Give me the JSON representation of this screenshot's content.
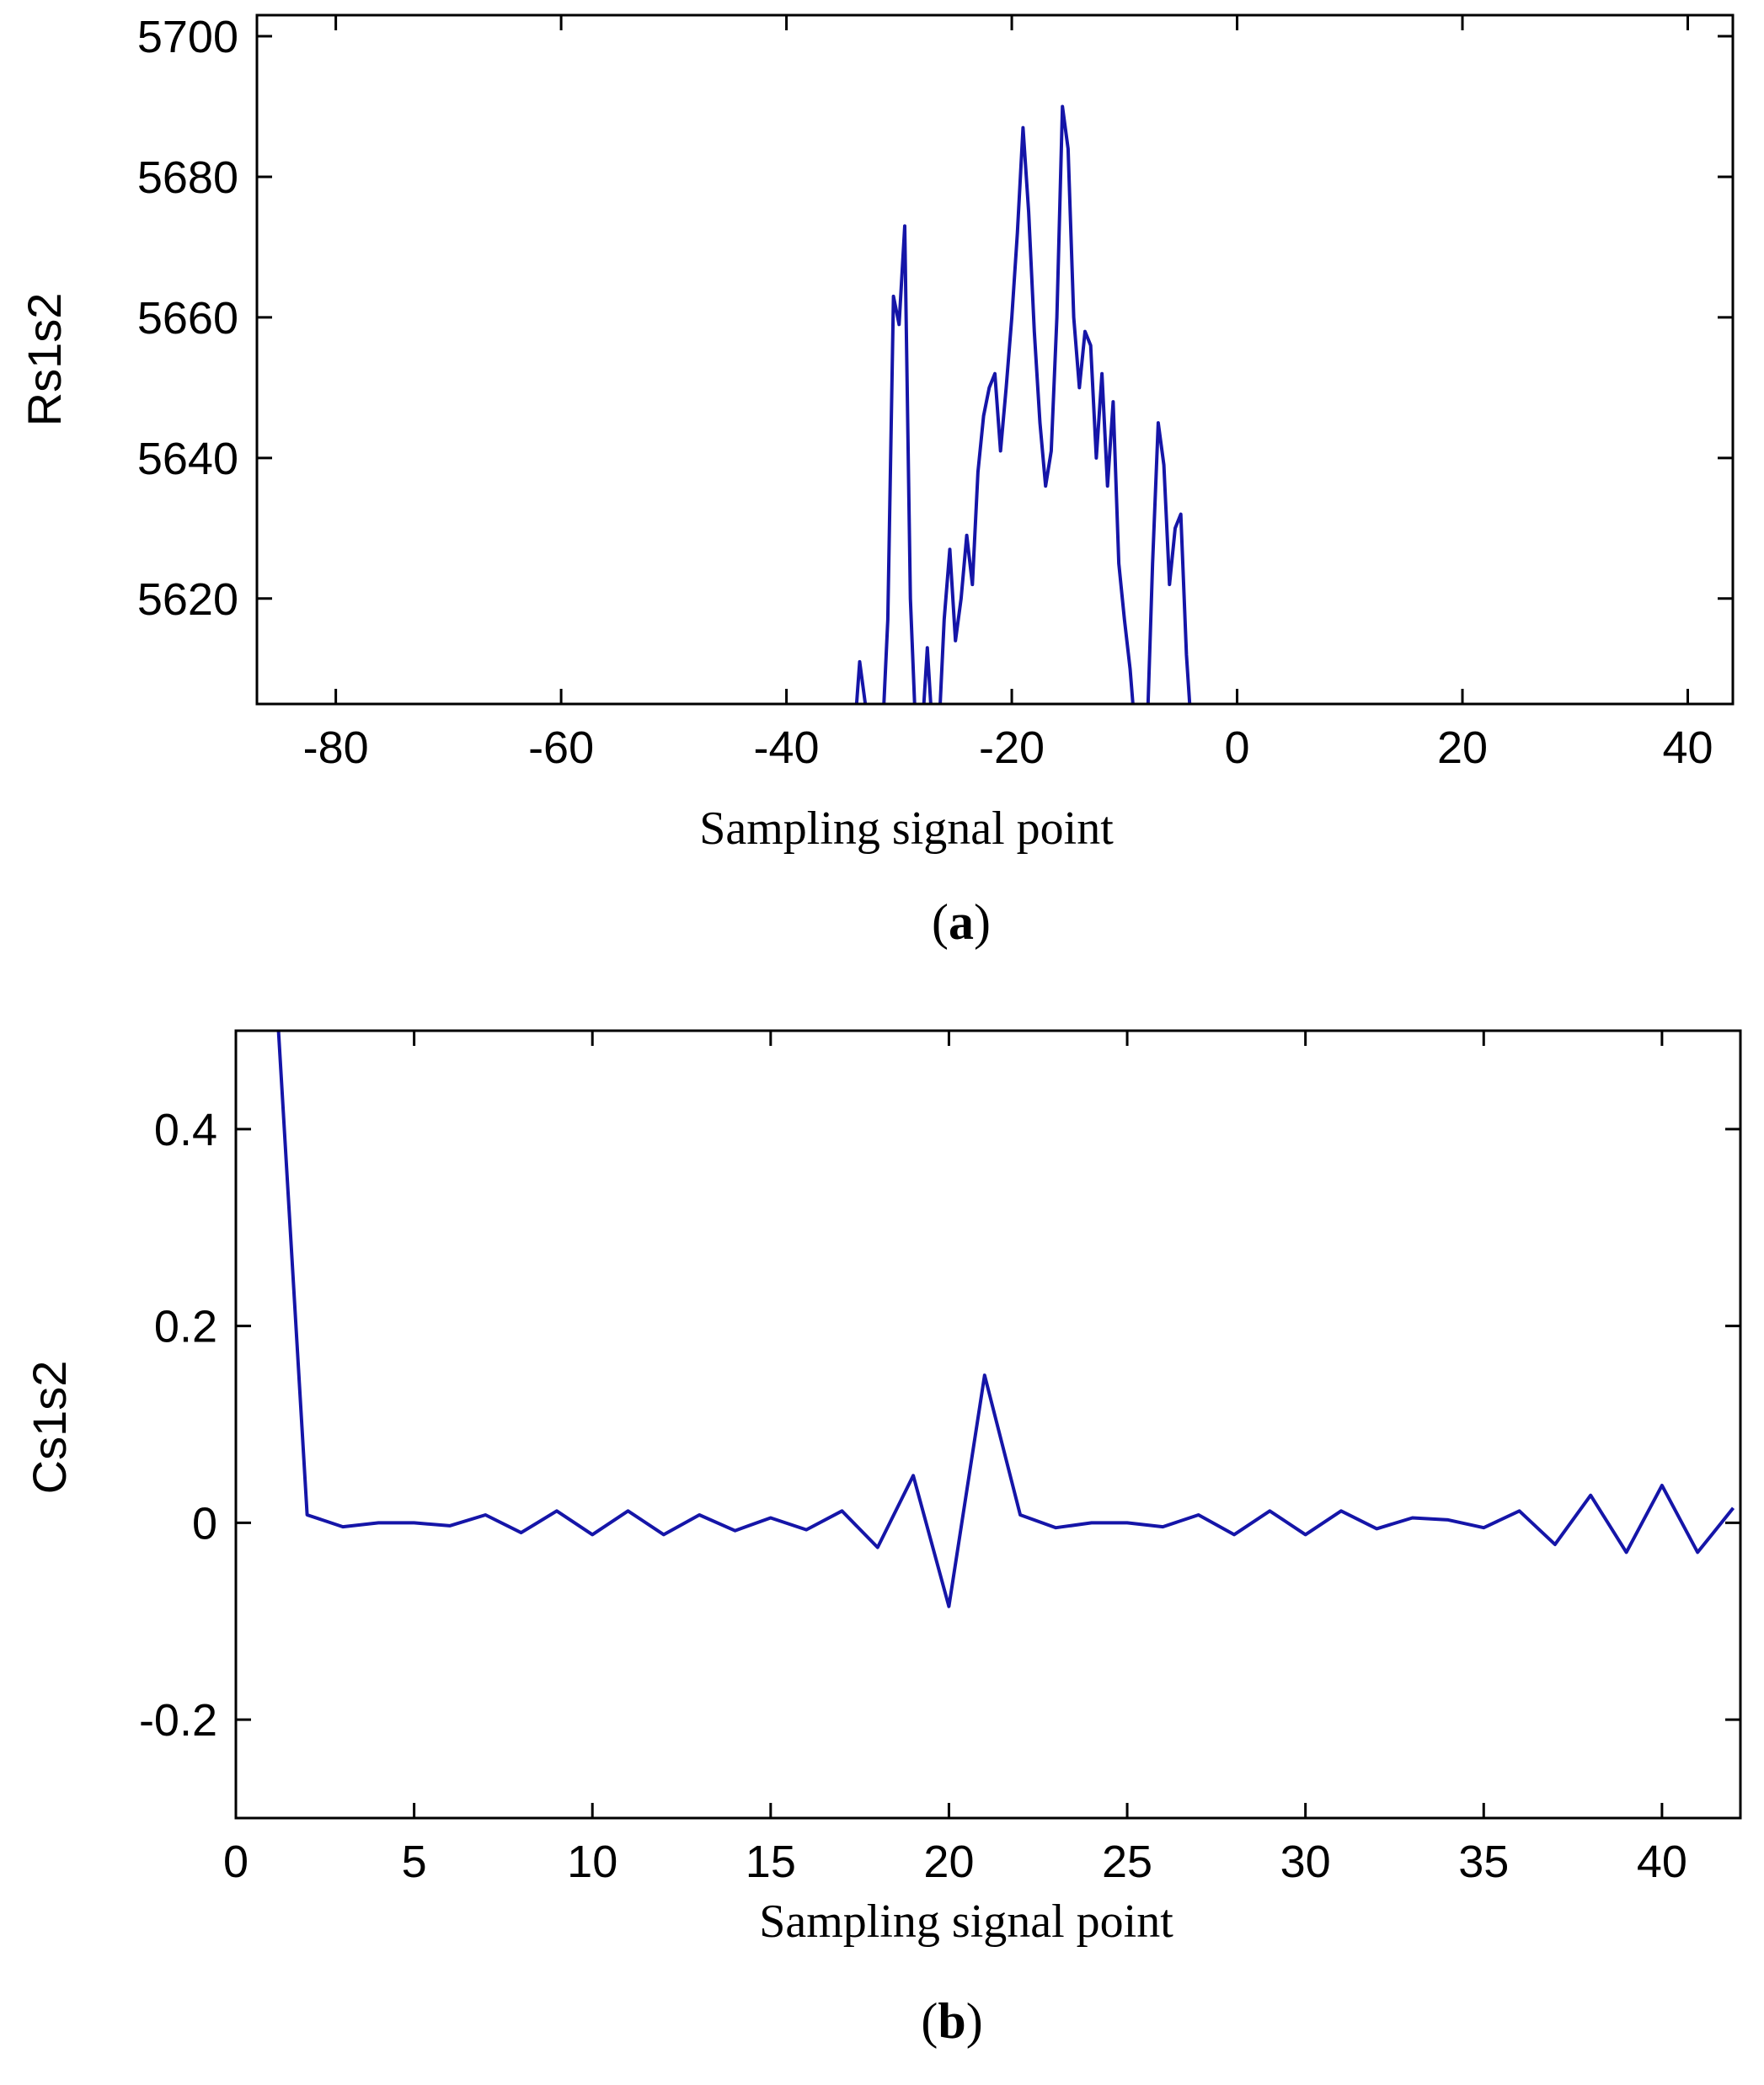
{
  "colors": {
    "series": "#1515a8",
    "axis": "#000000",
    "background": "#ffffff"
  },
  "chart_data": [
    {
      "type": "line",
      "panel_label": "a",
      "xlabel": "Sampling signal point",
      "ylabel": "Rs1s2",
      "xlim": [
        -87,
        44
      ],
      "ylim": [
        5605,
        5703
      ],
      "xticks": [
        -80,
        -60,
        -40,
        -20,
        0,
        20,
        40
      ],
      "yticks": [
        5620,
        5640,
        5660,
        5680,
        5700
      ],
      "xtick_labels": [
        "-80",
        "-60",
        "-40",
        "-20",
        "0",
        "20",
        "40"
      ],
      "ytick_labels": [
        "5620",
        "5640",
        "5660",
        "5680",
        "5700"
      ],
      "series": [
        {
          "x": [
            -34,
            -33.5,
            -33,
            -32.5,
            -32,
            -31.5,
            -31,
            -30.5,
            -30,
            -29.5,
            -29,
            -28.5,
            -28,
            -27.5,
            -27,
            -26.5,
            -26,
            -25.5,
            -25,
            -24.5,
            -24,
            -23.5,
            -23,
            -22.5,
            -22,
            -21.5,
            -21,
            -20.5,
            -20,
            -19.5,
            -19,
            -18.5,
            -18,
            -17.5,
            -17,
            -16.5,
            -16,
            -15.5,
            -15,
            -14.5,
            -14,
            -13.5,
            -13,
            -12.5,
            -12,
            -11.5,
            -11,
            -10.5,
            -10,
            -9.5,
            -9,
            -8.5,
            -8,
            -7.5,
            -7,
            -6.5,
            -6,
            -5.5,
            -5,
            -4.5,
            -4
          ],
          "y": [
            5600,
            5611,
            5605,
            5600,
            5600,
            5600,
            5617,
            5663,
            5659,
            5673,
            5620,
            5600,
            5600,
            5613,
            5600,
            5600,
            5617,
            5627,
            5614,
            5620,
            5629,
            5622,
            5638,
            5646,
            5650,
            5652,
            5641,
            5650,
            5660,
            5672,
            5687,
            5675,
            5658,
            5645,
            5636,
            5641,
            5660,
            5690,
            5684,
            5660,
            5650,
            5658,
            5656,
            5640,
            5652,
            5636,
            5648,
            5625,
            5617,
            5610,
            5600,
            5600,
            5600,
            5625,
            5645,
            5639,
            5622,
            5630,
            5632,
            5612,
            5600
          ]
        }
      ]
    },
    {
      "type": "line",
      "panel_label": "b",
      "xlabel": "Sampling signal point",
      "ylabel": "Cs1s2",
      "xlim": [
        0,
        42.2
      ],
      "ylim": [
        -0.3,
        0.5
      ],
      "xticks": [
        0,
        5,
        10,
        15,
        20,
        25,
        30,
        35,
        40
      ],
      "yticks": [
        -0.2,
        0,
        0.2,
        0.4
      ],
      "xtick_labels": [
        "0",
        "5",
        "10",
        "15",
        "20",
        "25",
        "30",
        "35",
        "40"
      ],
      "ytick_labels": [
        "-0.2",
        "0",
        "0.2",
        "0.4"
      ],
      "series": [
        {
          "x": [
            1,
            2,
            3,
            4,
            5,
            6,
            7,
            8,
            9,
            10,
            11,
            12,
            13,
            14,
            15,
            16,
            17,
            18,
            19,
            20,
            21,
            22,
            23,
            24,
            25,
            26,
            27,
            28,
            29,
            30,
            31,
            32,
            33,
            34,
            35,
            36,
            37,
            38,
            39,
            40,
            41,
            42
          ],
          "y": [
            0.62,
            0.008,
            -0.004,
            0.0,
            0.0,
            -0.003,
            0.008,
            -0.01,
            0.012,
            -0.012,
            0.012,
            -0.012,
            0.008,
            -0.008,
            0.005,
            -0.007,
            0.012,
            -0.025,
            0.048,
            -0.085,
            0.15,
            0.008,
            -0.005,
            0.0,
            0.0,
            -0.004,
            0.008,
            -0.012,
            0.012,
            -0.012,
            0.012,
            -0.006,
            0.005,
            0.003,
            -0.005,
            0.012,
            -0.022,
            0.028,
            -0.03,
            0.038,
            -0.03,
            0.015
          ]
        }
      ]
    }
  ]
}
